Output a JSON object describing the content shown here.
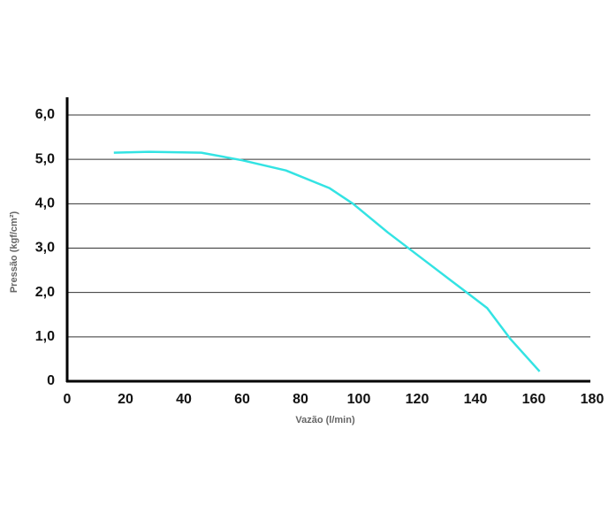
{
  "chart_data": {
    "type": "line",
    "x_label": "Vazão (l/min)",
    "y_label": "Pressão (kgf/cm²)",
    "xlim": [
      0,
      180
    ],
    "xticks": [
      0,
      20,
      40,
      60,
      80,
      100,
      120,
      140,
      160,
      180
    ],
    "ylim": [
      0,
      6
    ],
    "yticks": [
      0,
      {
        "value": 1,
        "label": "1,0"
      },
      {
        "value": 2,
        "label": "2,0"
      },
      {
        "value": 3,
        "label": "3,0"
      },
      {
        "value": 4,
        "label": "4,0"
      },
      {
        "value": 5,
        "label": "5,0"
      },
      {
        "value": 6,
        "label": "6,0"
      }
    ],
    "grid": true,
    "series": [
      {
        "color": "#33e3e3",
        "x": [
          16,
          28,
          46,
          60,
          75,
          90,
          98,
          110,
          125,
          137,
          144,
          152,
          162
        ],
        "values": [
          5.15,
          5.17,
          5.15,
          4.98,
          4.75,
          4.35,
          4.0,
          3.35,
          2.6,
          2.0,
          1.65,
          0.95,
          0.22
        ]
      }
    ]
  }
}
